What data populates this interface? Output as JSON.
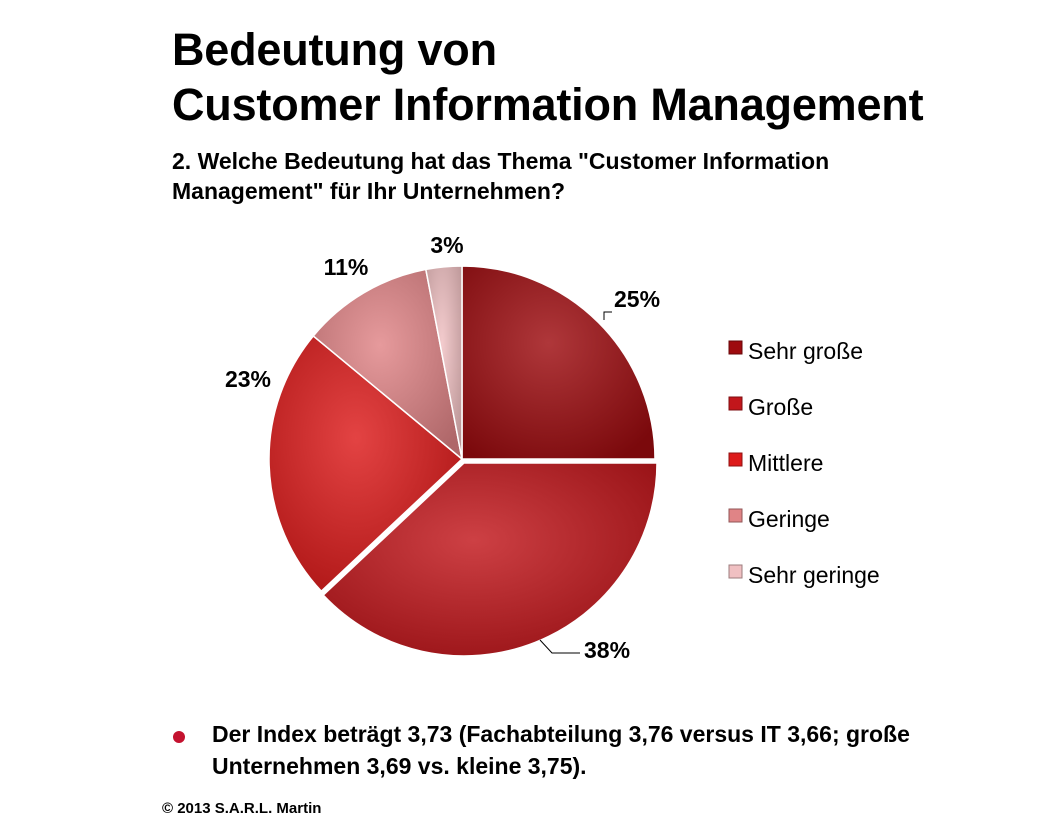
{
  "slide": {
    "title_line1": "Bedeutung von",
    "title_line2": "Customer Information Management",
    "question_line1": "2. Welche Bedeutung hat das Thema \"Customer Information",
    "question_line2": "Management\" für Ihr Unternehmen?",
    "bullet_line1": "Der Index beträgt 3,73 (Fachabteilung 3,76 versus IT 3,66; große",
    "bullet_line2": "Unternehmen 3,69 vs. kleine 3,75).",
    "copyright": "© 2013 S.A.R.L. Martin",
    "bullet_color": "#c4122f"
  },
  "chart_data": {
    "type": "pie",
    "title": "",
    "categories": [
      "Sehr große",
      "Große",
      "Mittlere",
      "Geringe",
      "Sehr geringe"
    ],
    "values": [
      25,
      38,
      23,
      11,
      3
    ],
    "labels": [
      "25%",
      "38%",
      "23%",
      "11%",
      "3%"
    ],
    "colors": [
      "#9e0b0f",
      "#c2161b",
      "#dd1a1a",
      "#e08486",
      "#f0c0c2"
    ],
    "start": "12 o'clock, clockwise",
    "legend_position": "right",
    "exploded_slice": "Große"
  }
}
